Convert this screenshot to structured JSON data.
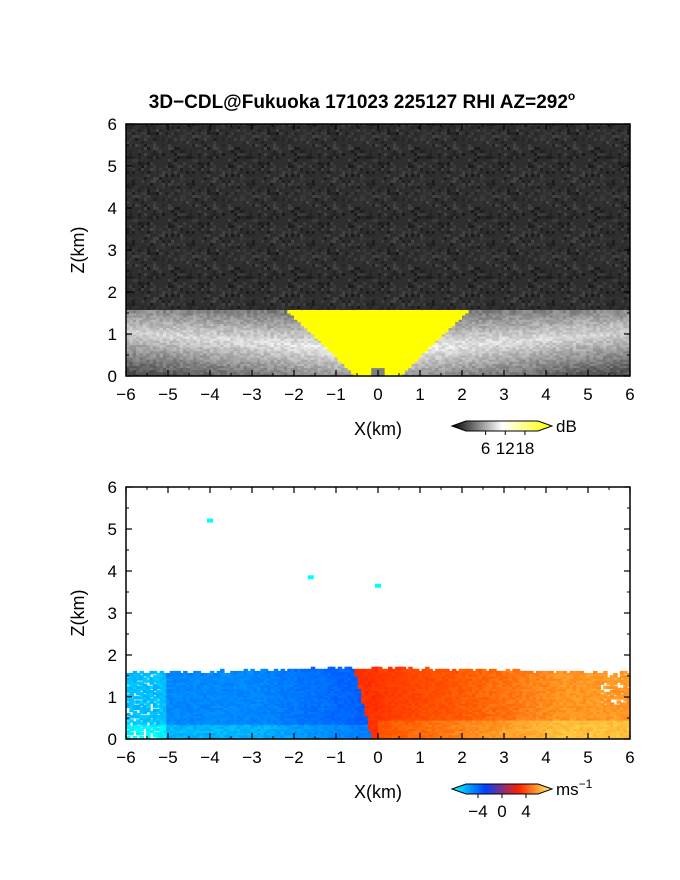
{
  "title": "3D−CDL@Fukuoka 171023 225127 RHI AZ=292",
  "title_superscript": "o",
  "chart_data": [
    {
      "type": "heatmap",
      "quantity": "reflectivity",
      "xlabel": "X(km)",
      "ylabel": "Z(km)",
      "xlim": [
        -6,
        6
      ],
      "ylim": [
        0,
        6
      ],
      "x_ticks": [
        -6,
        -5,
        -4,
        -3,
        -2,
        -1,
        0,
        1,
        2,
        3,
        4,
        5,
        6
      ],
      "y_ticks": [
        0,
        1,
        2,
        3,
        4,
        5,
        6
      ],
      "background_color": "#2e2e2e",
      "layer_top_km": 1.55,
      "saturated_region_color": "#ffff00",
      "saturated_region_top_km": 1.7,
      "colorbar": {
        "unit": "dB",
        "ticks": [
          "6",
          "12",
          "18"
        ],
        "range": [
          0,
          22
        ],
        "colors": [
          "#000000",
          "#ffffff",
          "#ffff00"
        ]
      }
    },
    {
      "type": "heatmap",
      "quantity": "doppler velocity",
      "xlabel": "X(km)",
      "ylabel": "Z(km)",
      "xlim": [
        -6,
        6
      ],
      "ylim": [
        0,
        6
      ],
      "x_ticks": [
        -6,
        -5,
        -4,
        -3,
        -2,
        -1,
        0,
        1,
        2,
        3,
        4,
        5,
        6
      ],
      "y_ticks": [
        0,
        1,
        2,
        3,
        4,
        5,
        6
      ],
      "layer_top_km": 1.65,
      "left_side_velocity_ms": -4,
      "right_side_velocity_ms": 3,
      "isolated_points": [
        {
          "x": -4.0,
          "z": 5.2
        },
        {
          "x": -1.6,
          "z": 3.85
        },
        {
          "x": 0.0,
          "z": 3.65
        }
      ],
      "colorbar": {
        "unit": "ms",
        "unit_exponent": "−1",
        "ticks": [
          "−4",
          "0",
          "4"
        ],
        "range": [
          -6,
          6
        ],
        "colors": [
          "#00ffff",
          "#0040ff",
          "#ff2000",
          "#ffff60"
        ]
      }
    }
  ]
}
